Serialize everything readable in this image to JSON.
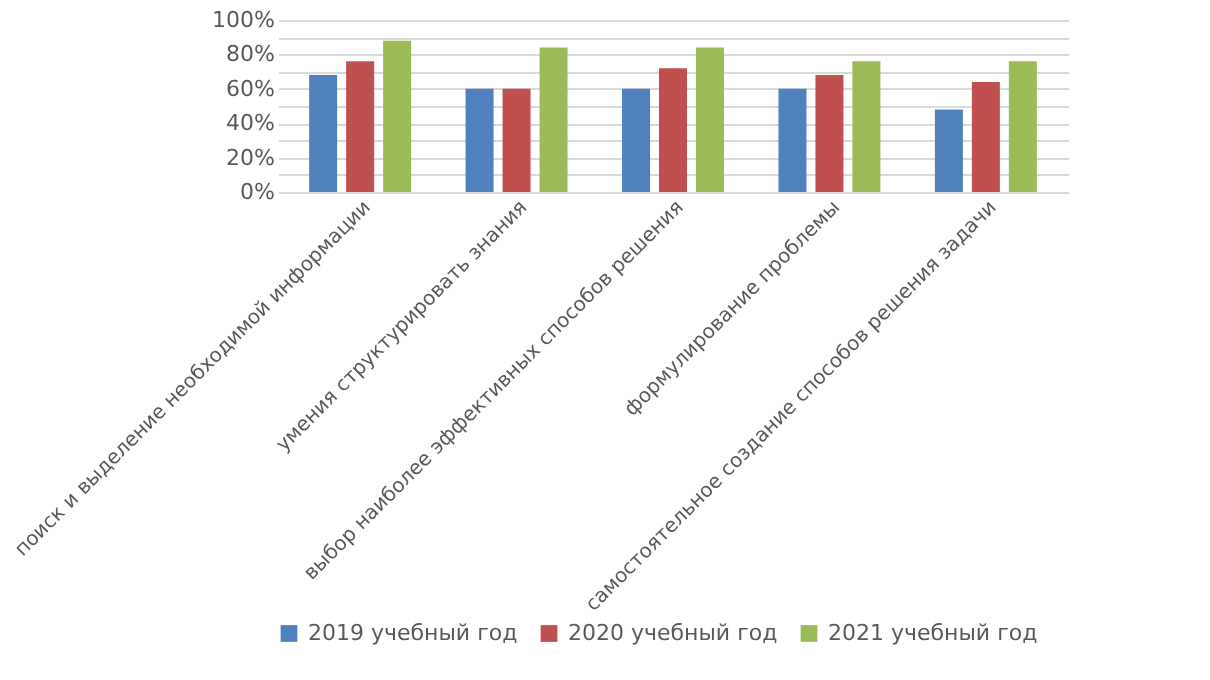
{
  "chart_data": {
    "type": "bar",
    "categories": [
      "поиск и выделение необходимой информации",
      "умения структурировать знания",
      "выбор наиболее эффективных способов решения",
      "формулирование проблемы",
      "самостоятельное создание способов решения задачи"
    ],
    "series": [
      {
        "name": "2019 учебный год",
        "color": "#4f81bd",
        "values": [
          68,
          60,
          60,
          60,
          48
        ]
      },
      {
        "name": "2020 учебный год",
        "color": "#c0504d",
        "values": [
          76,
          60,
          72,
          68,
          64
        ]
      },
      {
        "name": "2021 учебный год",
        "color": "#9bbb59",
        "values": [
          88,
          84,
          84,
          76,
          76
        ]
      }
    ],
    "ylim": [
      0,
      100
    ],
    "yticks": [
      {
        "value": 0,
        "label": "0%"
      },
      {
        "value": 10,
        "label": null
      },
      {
        "value": 20,
        "label": "20%"
      },
      {
        "value": 30,
        "label": null
      },
      {
        "value": 40,
        "label": "40%"
      },
      {
        "value": 50,
        "label": null
      },
      {
        "value": 60,
        "label": "60%"
      },
      {
        "value": 70,
        "label": null
      },
      {
        "value": 80,
        "label": "80%"
      },
      {
        "value": 90,
        "label": null
      },
      {
        "value": 100,
        "label": "100%"
      }
    ],
    "grid": "y",
    "legend": "bottom"
  }
}
